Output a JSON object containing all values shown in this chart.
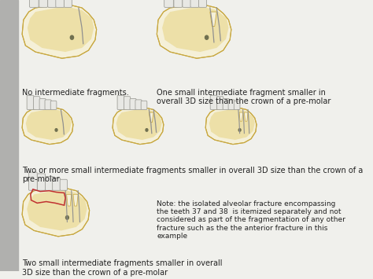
{
  "background_color": "#e0e0de",
  "panel_bg": "#dcdcda",
  "left_stripe_color": "#b0b0ae",
  "labels": {
    "top_left": "No intermediate fragments.",
    "top_right": "One small intermediate fragment smaller in\noverall 3D size than the crown of a pre-molar",
    "mid_left": "Two or more small intermediate fragments smaller in overall 3D size than the crown of a\npre-molar",
    "bottom_note": "Note: the isolated alveolar fracture encompassing\nthe teeth 37 and 38  is itemized separately and not\nconsidered as part of the fragmentation of any other\nfracture such as the the anterior fracture in this\nexample",
    "bottom_left": "Two small intermediate fragments smaller in overall\n3D size than the crown of a pre-molar"
  },
  "font_size_labels": 7.0,
  "font_size_note": 6.5,
  "bone_fill": "#ede0a8",
  "bone_edge": "#c8a840",
  "bone_inner": "#f5f0d8",
  "tooth_fill": "#e8e8e4",
  "tooth_edge": "#a0a09a",
  "fracture_color": "#c03030",
  "dot_color": "#707050",
  "frac_line_color": "#909090",
  "white_bg": "#f0f0ec"
}
